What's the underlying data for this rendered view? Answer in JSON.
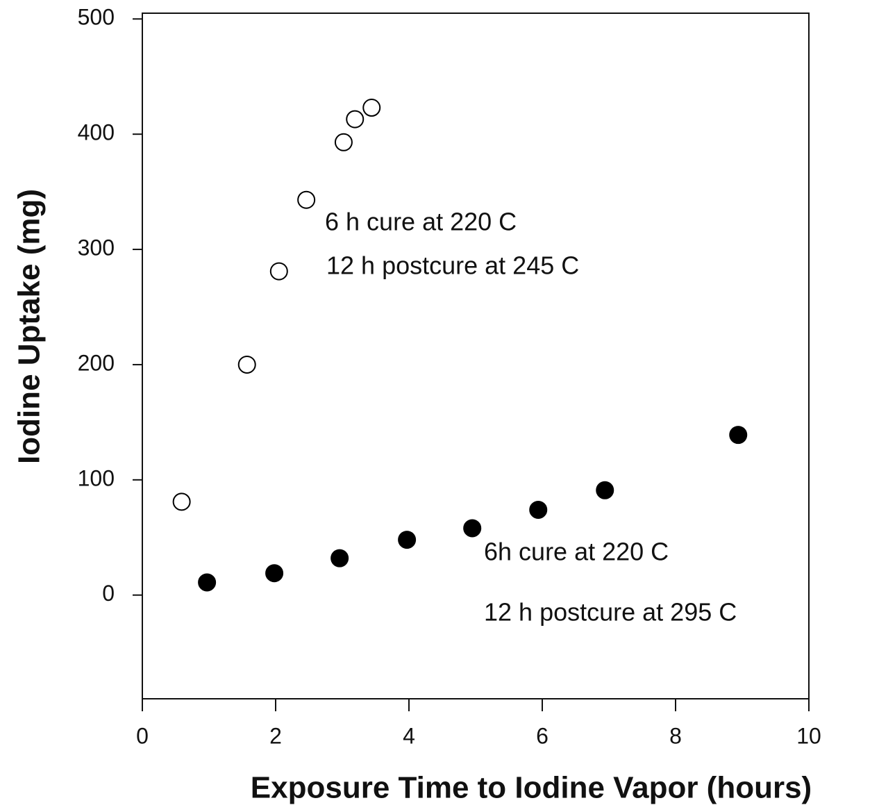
{
  "chart_data": {
    "type": "scatter",
    "xlabel": "Exposure Time to Iodine Vapor (hours)",
    "ylabel": "Iodine Uptake (mg)",
    "xlim": [
      0,
      10
    ],
    "xticks": [
      0,
      2,
      4,
      6,
      8,
      10
    ],
    "ylim": [
      -90,
      505
    ],
    "yticks": [
      0,
      100,
      200,
      300,
      400,
      500
    ],
    "series": [
      {
        "color": "#000000",
        "filled": false,
        "x": [
          0.59,
          1.57,
          2.05,
          2.46,
          3.02,
          3.19,
          3.44
        ],
        "values": [
          81,
          200,
          281,
          343,
          393,
          413,
          423
        ]
      },
      {
        "color": "#000000",
        "filled": true,
        "x": [
          0.97,
          1.98,
          2.96,
          3.97,
          4.95,
          5.94,
          6.94,
          8.94
        ],
        "values": [
          11,
          19,
          32,
          48,
          58,
          74,
          91,
          139
        ]
      }
    ],
    "annotations": [
      "6 h cure at 220 C",
      "12 h postcure at 245 C",
      "6h cure at 220 C",
      "12 h postcure at 295 C"
    ]
  }
}
